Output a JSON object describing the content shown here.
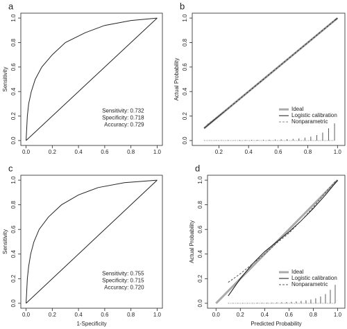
{
  "chart_data": [
    {
      "type": "line",
      "title": "a",
      "ylabel": "Sensitivity",
      "xlim": [
        -0.04,
        1.04
      ],
      "ylim": [
        -0.04,
        1.04
      ],
      "xticks": [
        {
          "value": 0,
          "label": "0.0"
        },
        0.2,
        0.4,
        0.6,
        0.8,
        {
          "value": 1,
          "label": "1.0"
        }
      ],
      "yticks": [
        {
          "value": 0,
          "label": "0.0"
        },
        0.2,
        0.4,
        0.6,
        0.8,
        {
          "value": 1,
          "label": "1.0"
        }
      ],
      "annotations": [
        "Sensitivity: 0.732",
        "Specificity: 0.718",
        "Accuracy: 0.729"
      ],
      "series": [
        {
          "color": "#222222",
          "x": [
            0,
            0.005,
            0.01,
            0.02,
            0.04,
            0.07,
            0.12,
            0.2,
            0.3,
            0.45,
            0.6,
            0.8,
            1
          ],
          "values": [
            0,
            0.1,
            0.2,
            0.3,
            0.4,
            0.5,
            0.6,
            0.7,
            0.8,
            0.88,
            0.94,
            0.98,
            1
          ]
        },
        {
          "color": "#222222",
          "x": [
            0,
            1
          ],
          "values": [
            0,
            1
          ]
        }
      ]
    },
    {
      "type": "line",
      "title": "b",
      "ylabel": "Actual Probability",
      "legend": "lower right",
      "xlim": [
        0.02,
        1.05
      ],
      "ylim": [
        -0.04,
        1.04
      ],
      "xticks": [
        0.2,
        0.4,
        0.6,
        0.8,
        {
          "value": 1,
          "label": "1.0"
        }
      ],
      "yticks": [
        {
          "value": 0,
          "label": "0.0"
        },
        0.2,
        0.4,
        0.6,
        0.8,
        {
          "value": 1,
          "label": "1.0"
        }
      ],
      "series": [
        {
          "name": "Ideal",
          "color": "#aaaaaa",
          "width": 3,
          "x": [
            0.1,
            1
          ],
          "values": [
            0.1,
            1
          ]
        },
        {
          "name": "Logistic calibration",
          "color": "#111111",
          "width": 1,
          "x": [
            0.1,
            1
          ],
          "values": [
            0.1,
            1
          ]
        },
        {
          "name": "Nonparametric",
          "color": "#888888",
          "width": 1,
          "dashed": true,
          "x": [
            0.12,
            0.3,
            0.5,
            0.7,
            0.9,
            0.98
          ],
          "values": [
            0.13,
            0.3,
            0.5,
            0.7,
            0.9,
            0.98
          ]
        },
        {
          "kind": "spike",
          "color": "#333333",
          "x": [
            0.1,
            0.14,
            0.18,
            0.22,
            0.26,
            0.3,
            0.34,
            0.38,
            0.42,
            0.46,
            0.5,
            0.54,
            0.58,
            0.62,
            0.66,
            0.7,
            0.74,
            0.78,
            0.82,
            0.86,
            0.9,
            0.94,
            0.98
          ],
          "values": [
            0.002,
            0.002,
            0.002,
            0.003,
            0.003,
            0.003,
            0.004,
            0.004,
            0.005,
            0.005,
            0.006,
            0.007,
            0.008,
            0.009,
            0.011,
            0.014,
            0.018,
            0.024,
            0.032,
            0.045,
            0.065,
            0.1,
            0.14
          ]
        }
      ]
    },
    {
      "type": "line",
      "title": "c",
      "xlabel": "1-Specificity",
      "ylabel": "Sensitivity",
      "xlim": [
        -0.04,
        1.04
      ],
      "ylim": [
        -0.04,
        1.04
      ],
      "xticks": [
        {
          "value": 0,
          "label": "0.0"
        },
        0.2,
        0.4,
        0.6,
        0.8,
        {
          "value": 1,
          "label": "1.0"
        }
      ],
      "yticks": [
        {
          "value": 0,
          "label": "0.0"
        },
        0.2,
        0.4,
        0.6,
        0.8,
        {
          "value": 1,
          "label": "1.0"
        }
      ],
      "annotations": [
        "Sensitivity: 0.755",
        "Specificity: 0.715",
        "Accuracy: 0.720"
      ],
      "series": [
        {
          "color": "#222222",
          "x": [
            0,
            0.005,
            0.01,
            0.02,
            0.035,
            0.06,
            0.1,
            0.17,
            0.27,
            0.4,
            0.55,
            0.75,
            1
          ],
          "values": [
            0,
            0.1,
            0.2,
            0.3,
            0.4,
            0.5,
            0.6,
            0.7,
            0.8,
            0.88,
            0.94,
            0.98,
            1
          ]
        },
        {
          "color": "#222222",
          "x": [
            0,
            1
          ],
          "values": [
            0,
            1
          ]
        }
      ]
    },
    {
      "type": "line",
      "title": "d",
      "xlabel": "Predicted Probability",
      "ylabel": "Actual Probability",
      "legend": "lower right",
      "xlim": [
        -0.07,
        1.06
      ],
      "ylim": [
        -0.04,
        1.04
      ],
      "xticks": [
        {
          "value": 0,
          "label": "0.0"
        },
        0.2,
        0.4,
        0.6,
        0.8,
        {
          "value": 1,
          "label": "1.0"
        }
      ],
      "yticks": [
        {
          "value": 0,
          "label": "0.0"
        },
        0.2,
        0.4,
        0.6,
        0.8,
        {
          "value": 1,
          "label": "1.0"
        }
      ],
      "series": [
        {
          "name": "Ideal",
          "color": "#aaaaaa",
          "width": 3,
          "x": [
            0,
            1
          ],
          "values": [
            0,
            1
          ]
        },
        {
          "name": "Logistic calibration",
          "color": "#111111",
          "width": 1,
          "x": [
            0.1,
            0.2,
            0.3,
            0.4,
            0.5,
            0.6,
            0.7,
            0.8,
            0.9,
            1
          ],
          "values": [
            0.06,
            0.2,
            0.32,
            0.42,
            0.5,
            0.58,
            0.67,
            0.77,
            0.88,
            1
          ]
        },
        {
          "name": "Nonparametric",
          "color": "#555555",
          "width": 1,
          "dashed": true,
          "x": [
            0.1,
            0.2,
            0.3,
            0.4,
            0.5,
            0.6,
            0.7,
            0.8,
            0.9,
            0.98
          ],
          "values": [
            0.17,
            0.24,
            0.32,
            0.4,
            0.49,
            0.57,
            0.67,
            0.78,
            0.9,
            0.99
          ]
        },
        {
          "kind": "spike",
          "color": "#333333",
          "x": [
            0.1,
            0.14,
            0.18,
            0.22,
            0.26,
            0.3,
            0.34,
            0.38,
            0.42,
            0.46,
            0.5,
            0.54,
            0.58,
            0.62,
            0.66,
            0.7,
            0.74,
            0.78,
            0.82,
            0.86,
            0.9,
            0.94,
            0.98
          ],
          "values": [
            0.002,
            0.002,
            0.002,
            0.003,
            0.003,
            0.003,
            0.004,
            0.004,
            0.005,
            0.006,
            0.007,
            0.008,
            0.01,
            0.012,
            0.015,
            0.019,
            0.024,
            0.031,
            0.04,
            0.055,
            0.075,
            0.11,
            0.15
          ]
        }
      ]
    }
  ]
}
